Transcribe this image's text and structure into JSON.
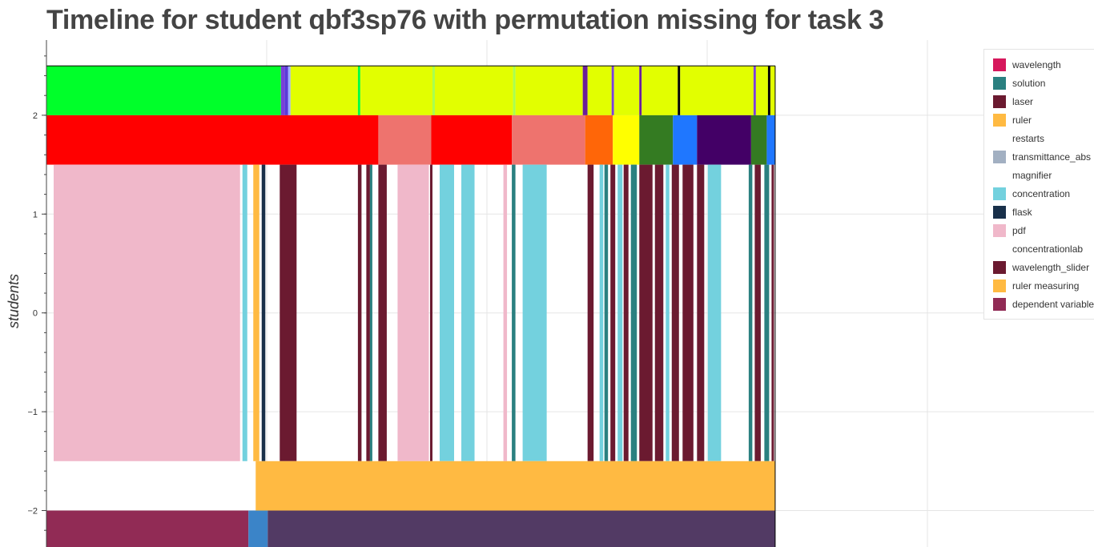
{
  "title": "Timeline for student qbf3sp76 with permutation missing for task 3",
  "chart_data": {
    "type": "timeline",
    "title": "Timeline for student qbf3sp76 with permutation missing for task 3",
    "ylabel": "students",
    "xlabel": "",
    "x_tick_labels_shown": false,
    "ylim": [
      -2.35,
      2.78
    ],
    "xlim": [
      0,
      1000
    ],
    "y_ticks": [
      -2,
      -1,
      0,
      1,
      2
    ],
    "y_tick_labels": [
      "−2",
      "−1",
      "0",
      "1",
      "2"
    ],
    "grid": true,
    "legend_position": "top-right",
    "data_extent": 303,
    "legend": [
      {
        "label": "wavelength",
        "color": "#d6185c"
      },
      {
        "label": "solution",
        "color": "#2a8080"
      },
      {
        "label": "laser",
        "color": "#6b1a30"
      },
      {
        "label": "ruler",
        "color": "#ffba42"
      },
      {
        "label": "restarts",
        "color": "#ffffff"
      },
      {
        "label": "transmittance_abs",
        "color": "#a2b0c2"
      },
      {
        "label": "magnifier",
        "color": "#ffffff"
      },
      {
        "label": "concentration",
        "color": "#73d1de"
      },
      {
        "label": "flask",
        "color": "#19304a"
      },
      {
        "label": "pdf",
        "color": "#f0b8ca"
      },
      {
        "label": "concentrationlab",
        "color": "#ffffff"
      },
      {
        "label": "wavelength_slider",
        "color": "#6b1a30"
      },
      {
        "label": "ruler measuring",
        "color": "#ffba42"
      },
      {
        "label": "dependent variable",
        "color": "#912b55"
      }
    ],
    "rows": [
      {
        "y_top": 2.5,
        "y_bottom": 2.0,
        "segments": [
          {
            "start": 0,
            "end": 97.5,
            "color": "#00ff2a"
          },
          {
            "start": 97.5,
            "end": 99,
            "color": "#7a3fd8"
          },
          {
            "start": 99,
            "end": 100.5,
            "color": "#5a3ad8"
          },
          {
            "start": 100.5,
            "end": 101.5,
            "color": "#a0b0ff"
          },
          {
            "start": 101.5,
            "end": 129.5,
            "color": "#e2ff00"
          },
          {
            "start": 129.5,
            "end": 130.5,
            "color": "#00ff40"
          },
          {
            "start": 130.5,
            "end": 160.5,
            "color": "#e2ff00"
          },
          {
            "start": 160.5,
            "end": 161.5,
            "color": "#a8ff50"
          },
          {
            "start": 161.5,
            "end": 194,
            "color": "#e2ff00"
          },
          {
            "start": 194,
            "end": 195,
            "color": "#a8ff50"
          },
          {
            "start": 195,
            "end": 223,
            "color": "#e2ff00"
          },
          {
            "start": 223,
            "end": 225,
            "color": "#6a1f9a"
          },
          {
            "start": 225,
            "end": 235,
            "color": "#e2ff00"
          },
          {
            "start": 235,
            "end": 236,
            "color": "#7a3fd8"
          },
          {
            "start": 236,
            "end": 246.5,
            "color": "#e2ff00"
          },
          {
            "start": 246.5,
            "end": 247.5,
            "color": "#6a1f9a"
          },
          {
            "start": 247.5,
            "end": 262.5,
            "color": "#e2ff00"
          },
          {
            "start": 262.5,
            "end": 263.5,
            "color": "#000000"
          },
          {
            "start": 263.5,
            "end": 294,
            "color": "#e2ff00"
          },
          {
            "start": 294,
            "end": 295,
            "color": "#7a3fd8"
          },
          {
            "start": 295,
            "end": 300,
            "color": "#e2ff00"
          },
          {
            "start": 300,
            "end": 301,
            "color": "#000000"
          },
          {
            "start": 301,
            "end": 303,
            "color": "#e2ff00"
          }
        ]
      },
      {
        "y_top": 2.0,
        "y_bottom": 1.5,
        "segments": [
          {
            "start": 0,
            "end": 138,
            "color": "#ff0000"
          },
          {
            "start": 138,
            "end": 160,
            "color": "#ee736e"
          },
          {
            "start": 160,
            "end": 193.5,
            "color": "#ff0000"
          },
          {
            "start": 193.5,
            "end": 224,
            "color": "#ee736e"
          },
          {
            "start": 224,
            "end": 235.5,
            "color": "#ff6608"
          },
          {
            "start": 235.5,
            "end": 246.5,
            "color": "#ffff00"
          },
          {
            "start": 246.5,
            "end": 260.5,
            "color": "#347b22"
          },
          {
            "start": 260.5,
            "end": 270.5,
            "color": "#1f77ff"
          },
          {
            "start": 270.5,
            "end": 293,
            "color": "#430066"
          },
          {
            "start": 293,
            "end": 299.5,
            "color": "#347b22"
          },
          {
            "start": 299.5,
            "end": 303,
            "color": "#1f77ff"
          }
        ]
      },
      {
        "y_top": 1.5,
        "y_bottom": -1.5,
        "segments": [
          {
            "start": 3,
            "end": 80.5,
            "color": "#f0b8ca"
          },
          {
            "start": 81.5,
            "end": 83.5,
            "color": "#73d1de"
          },
          {
            "start": 86,
            "end": 88.5,
            "color": "#ffba42"
          },
          {
            "start": 89.5,
            "end": 91,
            "color": "#19304a"
          },
          {
            "start": 97,
            "end": 104,
            "color": "#6b1a30"
          },
          {
            "start": 129.5,
            "end": 131,
            "color": "#6b1a30"
          },
          {
            "start": 133,
            "end": 134.5,
            "color": "#6b1a30"
          },
          {
            "start": 134.5,
            "end": 135.5,
            "color": "#2a8080"
          },
          {
            "start": 138,
            "end": 141.5,
            "color": "#6b1a30"
          },
          {
            "start": 146,
            "end": 159,
            "color": "#f0b8ca"
          },
          {
            "start": 159.5,
            "end": 160.5,
            "color": "#6b1a30"
          },
          {
            "start": 163.5,
            "end": 169.5,
            "color": "#73d1de"
          },
          {
            "start": 172.5,
            "end": 178,
            "color": "#73d1de"
          },
          {
            "start": 190,
            "end": 191.5,
            "color": "#f0b8ca"
          },
          {
            "start": 193.5,
            "end": 195,
            "color": "#2a8080"
          },
          {
            "start": 198,
            "end": 208,
            "color": "#73d1de"
          },
          {
            "start": 225,
            "end": 227.5,
            "color": "#6b1a30"
          },
          {
            "start": 230,
            "end": 231.5,
            "color": "#73d1de"
          },
          {
            "start": 232,
            "end": 233.5,
            "color": "#2a8080"
          },
          {
            "start": 234.5,
            "end": 236.5,
            "color": "#6b1a30"
          },
          {
            "start": 237.5,
            "end": 239.5,
            "color": "#73d1de"
          },
          {
            "start": 240,
            "end": 242,
            "color": "#6b1a30"
          },
          {
            "start": 243,
            "end": 245.5,
            "color": "#2a8080"
          },
          {
            "start": 246.5,
            "end": 252,
            "color": "#6b1a30"
          },
          {
            "start": 253,
            "end": 256.5,
            "color": "#6b1a30"
          },
          {
            "start": 257.5,
            "end": 259,
            "color": "#73d1de"
          },
          {
            "start": 260,
            "end": 263,
            "color": "#6b1a30"
          },
          {
            "start": 264.5,
            "end": 269,
            "color": "#6b1a30"
          },
          {
            "start": 270.5,
            "end": 273.5,
            "color": "#6b1a30"
          },
          {
            "start": 275,
            "end": 280.5,
            "color": "#73d1de"
          },
          {
            "start": 292,
            "end": 293.5,
            "color": "#2a8080"
          },
          {
            "start": 294.5,
            "end": 297,
            "color": "#6b1a30"
          },
          {
            "start": 298.5,
            "end": 300.5,
            "color": "#2a8080"
          },
          {
            "start": 301.5,
            "end": 302.5,
            "color": "#6b1a30"
          }
        ]
      },
      {
        "y_top": -1.5,
        "y_bottom": -2.0,
        "segments": [
          {
            "start": 87,
            "end": 303,
            "color": "#ffba42"
          }
        ]
      },
      {
        "y_top": -2.0,
        "y_bottom": -2.5,
        "segments": [
          {
            "start": 0,
            "end": 84,
            "color": "#912b55"
          },
          {
            "start": 84,
            "end": 92,
            "color": "#3b84c8"
          },
          {
            "start": 92,
            "end": 303,
            "color": "#523a64"
          }
        ]
      }
    ]
  }
}
